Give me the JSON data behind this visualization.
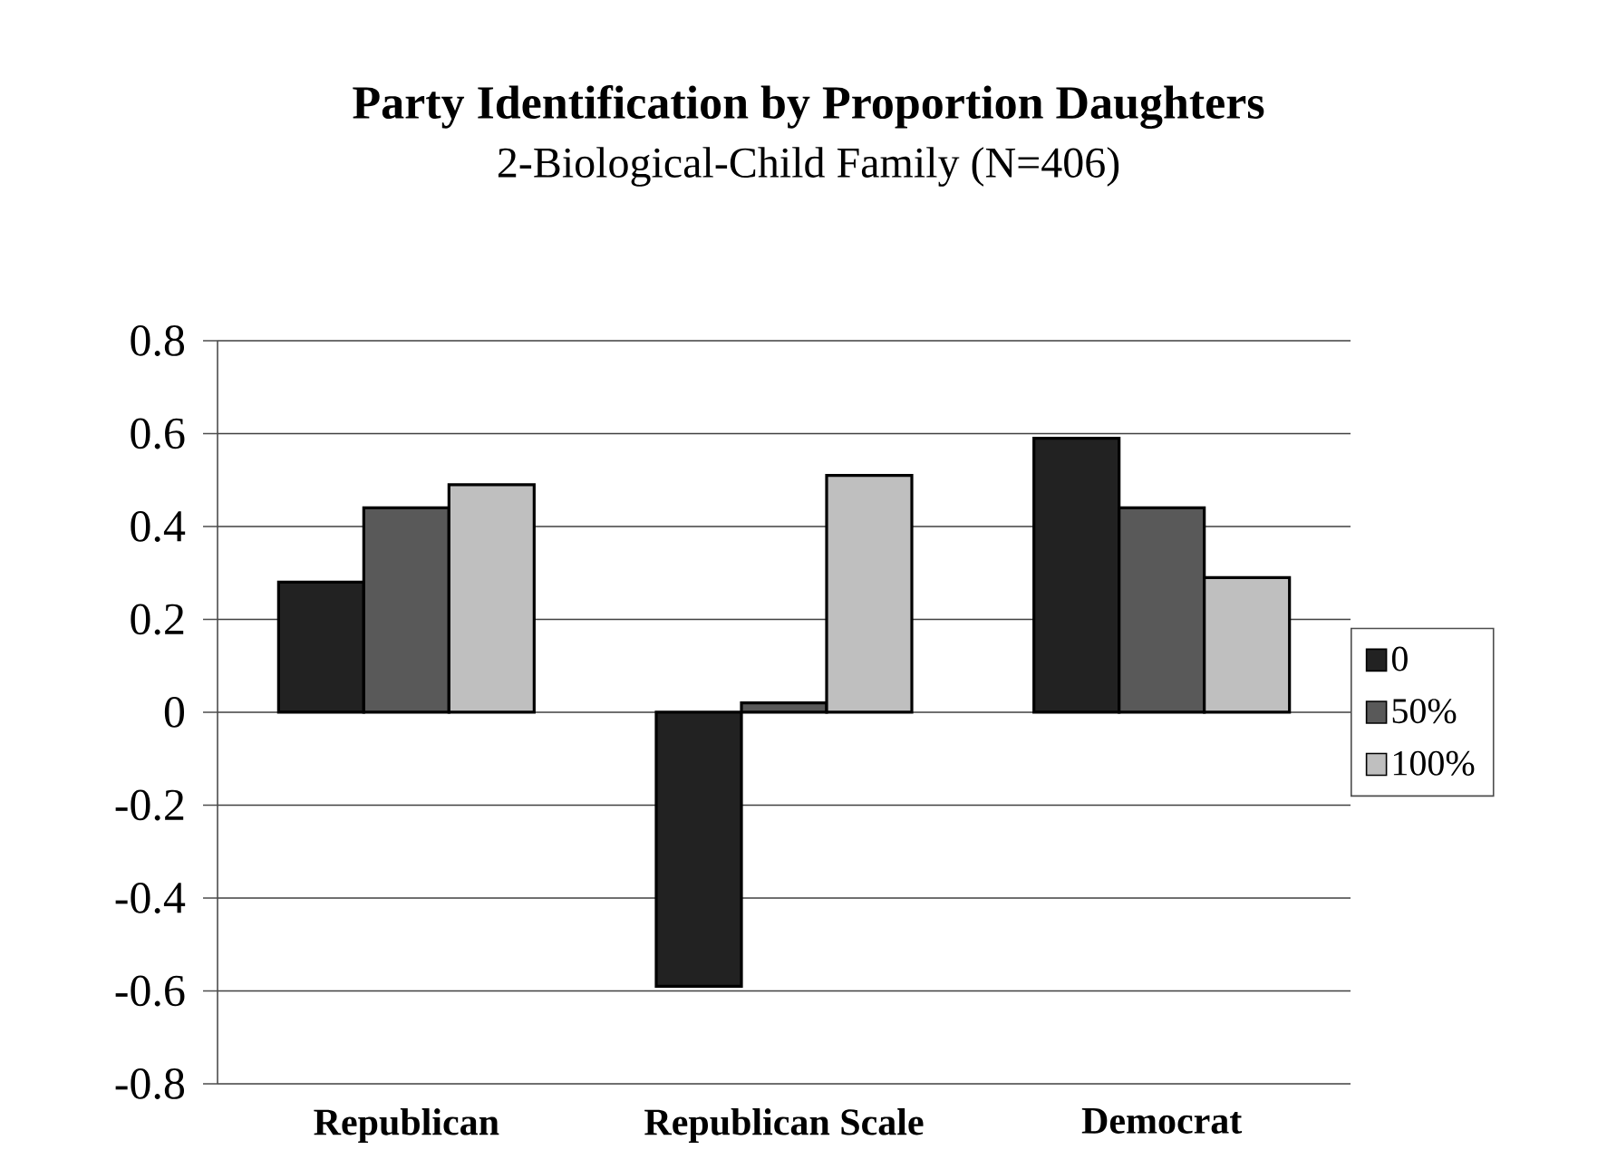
{
  "chart_data": {
    "type": "bar",
    "title": "Party Identification by Proportion Daughters",
    "subtitle": "2-Biological-Child Family (N=406)",
    "categories": [
      "Republican",
      "Republican Scale",
      "Democrat"
    ],
    "series": [
      {
        "name": "0",
        "color": "#222222",
        "values": [
          0.28,
          -0.59,
          0.59
        ]
      },
      {
        "name": "50%",
        "color": "#595959",
        "values": [
          0.44,
          0.02,
          0.44
        ]
      },
      {
        "name": "100%",
        "color": "#bfbfbf",
        "values": [
          0.49,
          0.51,
          0.29
        ]
      }
    ],
    "ylim": [
      -0.8,
      0.8
    ],
    "yticks": [
      -0.8,
      -0.6,
      -0.4,
      -0.2,
      0,
      0.2,
      0.4,
      0.6,
      0.8
    ],
    "grid": "y",
    "legend": "right"
  }
}
